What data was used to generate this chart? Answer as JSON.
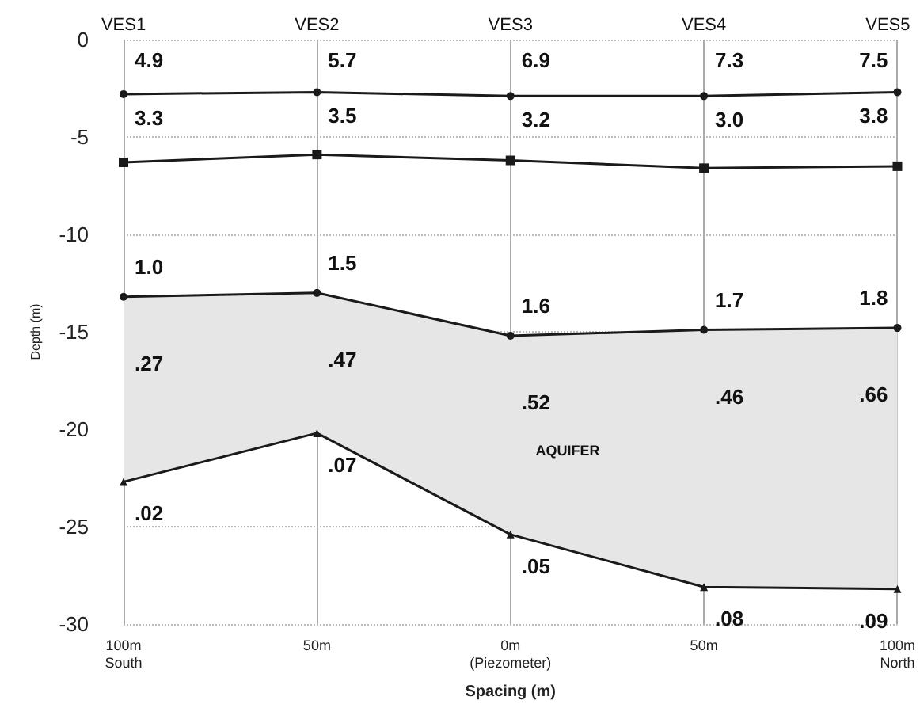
{
  "chart_data": {
    "type": "line",
    "xlabel": "Spacing (m)",
    "ylabel": "Depth (m)",
    "categories": [
      "100m\nSouth",
      "50m",
      "0m\n(Piezometer)",
      "50m",
      "100m\nNorth"
    ],
    "ylim": [
      -30,
      0
    ],
    "yticks": [
      0,
      -5,
      -10,
      -15,
      -20,
      -25,
      -30
    ],
    "grid": true,
    "line_style": "solid",
    "series": [
      {
        "color": "#1a1a1a",
        "marker": "circle",
        "values": [
          -2.8,
          -2.7,
          -2.9,
          -2.9,
          -2.7
        ]
      },
      {
        "color": "#1a1a1a",
        "marker": "square",
        "values": [
          -6.3,
          -5.9,
          -6.2,
          -6.6,
          -6.5
        ]
      },
      {
        "color": "#1a1a1a",
        "marker": "circle",
        "values": [
          -13.2,
          -13.0,
          -15.2,
          -14.9,
          -14.8
        ]
      },
      {
        "color": "#1a1a1a",
        "marker": "triangle",
        "values": [
          -22.7,
          -20.2,
          -25.4,
          -28.1,
          -28.2
        ],
        "lower": [
          -22.7,
          -20.2,
          -25.4,
          -28.1,
          -28.2
        ],
        "upper": [
          -13.2,
          -13.0,
          -15.2,
          -14.9,
          -14.8
        ]
      }
    ],
    "annotations": [
      "VES1",
      "VES2",
      "VES3",
      "VES4",
      "VES5",
      "4.9",
      "5.7",
      "6.9",
      "7.3",
      "7.5",
      "3.3",
      "3.5",
      "3.2",
      "3.0",
      "3.8",
      "1.0",
      "1.5",
      "1.6",
      "1.7",
      "1.8",
      ".27",
      ".47",
      ".52",
      ".46",
      ".66",
      ".02",
      ".07",
      ".05",
      ".08",
      ".09",
      "AQUIFER"
    ]
  }
}
